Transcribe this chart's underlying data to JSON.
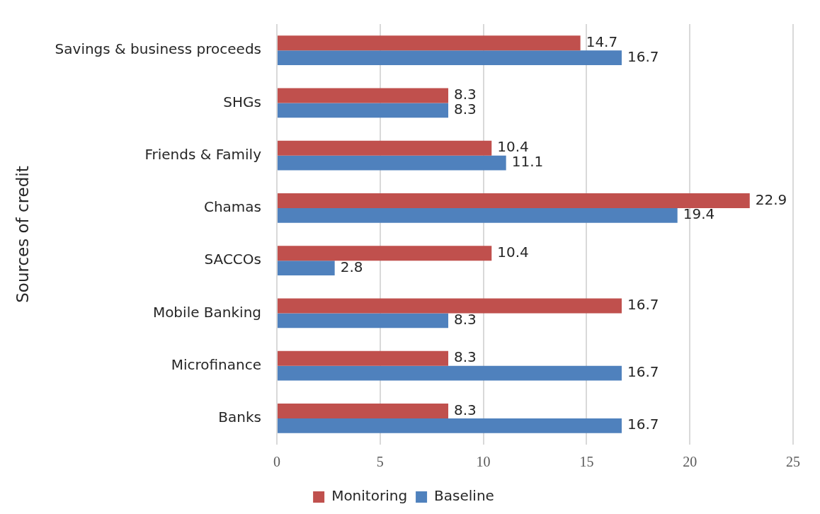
{
  "chart_data": {
    "type": "bar",
    "orientation": "horizontal",
    "ylabel": "Sources of credit",
    "categories": [
      "Savings & business proceeds",
      "SHGs",
      "Friends & Family",
      "Chamas",
      "SACCOs",
      "Mobile Banking",
      "Microfinance",
      "Banks"
    ],
    "series": [
      {
        "name": "Monitoring",
        "color": "#c0504d",
        "values": [
          14.7,
          8.3,
          10.4,
          22.9,
          10.4,
          16.7,
          8.3,
          8.3
        ]
      },
      {
        "name": "Baseline",
        "color": "#4f81bd",
        "values": [
          16.7,
          8.3,
          11.1,
          19.4,
          2.8,
          8.3,
          16.7,
          16.7
        ]
      }
    ],
    "xlim": [
      0,
      25
    ],
    "xticks": [
      0,
      5,
      10,
      15,
      20,
      25
    ],
    "grid": "x",
    "legend": "bottom",
    "data_labels": true
  }
}
